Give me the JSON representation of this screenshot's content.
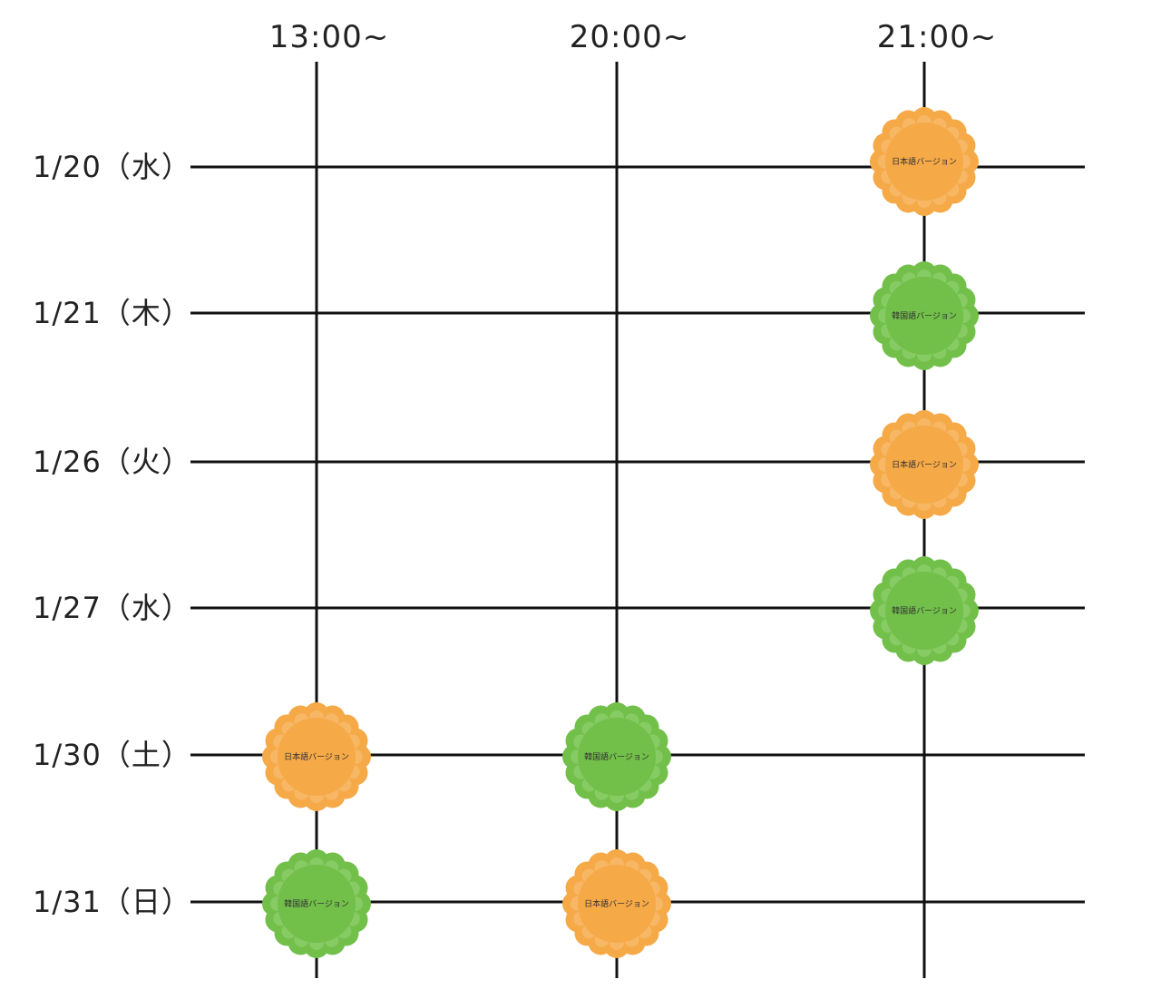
{
  "columns": [
    {
      "label": "13:00~"
    },
    {
      "label": "20:00~"
    },
    {
      "label": "21:00~"
    }
  ],
  "rows": [
    {
      "label": "1/20（水）"
    },
    {
      "label": "1/21（木）"
    },
    {
      "label": "1/26（火）"
    },
    {
      "label": "1/27（水）"
    },
    {
      "label": "1/30（土）"
    },
    {
      "label": "1/31（日）"
    }
  ],
  "versions": {
    "jp": {
      "label": "日本語バージョン",
      "color": "#F5A947",
      "edge": "#F8C27A"
    },
    "kr": {
      "label": "韓国語バージョン",
      "color": "#72BF4A",
      "edge": "#95D374"
    }
  },
  "schedule": [
    {
      "row": 0,
      "col": 2,
      "version": "jp"
    },
    {
      "row": 1,
      "col": 2,
      "version": "kr"
    },
    {
      "row": 2,
      "col": 2,
      "version": "jp"
    },
    {
      "row": 3,
      "col": 2,
      "version": "kr"
    },
    {
      "row": 4,
      "col": 0,
      "version": "jp"
    },
    {
      "row": 4,
      "col": 1,
      "version": "kr"
    },
    {
      "row": 5,
      "col": 0,
      "version": "kr"
    },
    {
      "row": 5,
      "col": 1,
      "version": "jp"
    }
  ]
}
